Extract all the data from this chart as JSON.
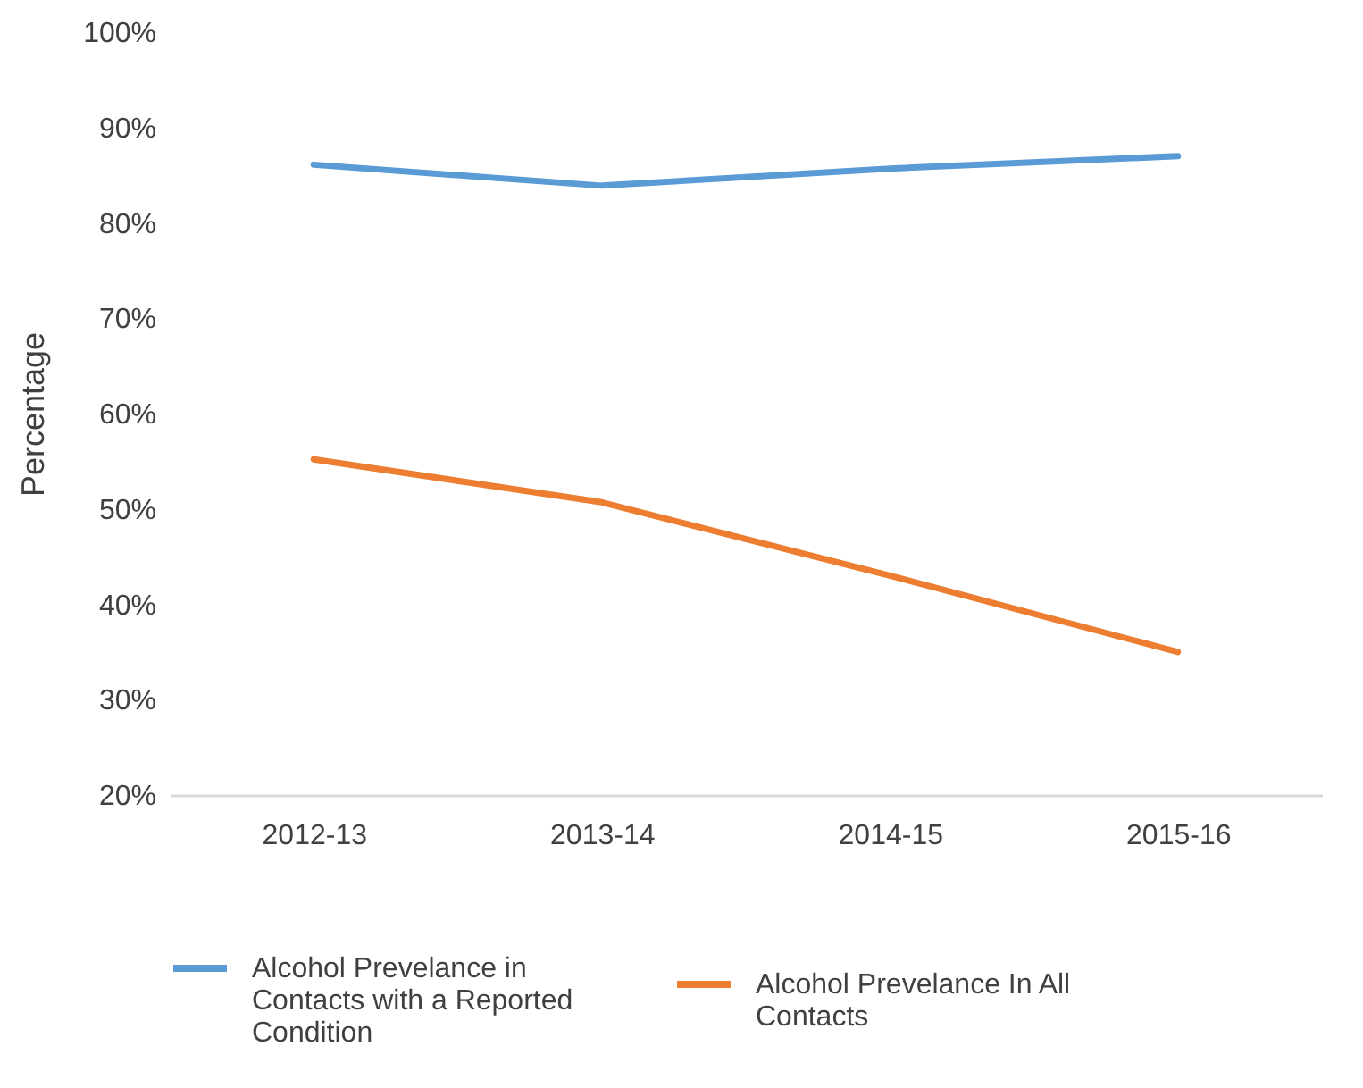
{
  "chart_data": {
    "type": "line",
    "ylabel": "Percentage",
    "categories": [
      "2012-13",
      "2013-14",
      "2014-15",
      "2015-16"
    ],
    "series": [
      {
        "name": "Alcohol Prevelance in Contacts with a Reported Condition",
        "color": "#5b9bd5",
        "values": [
          86.1,
          83.9,
          85.7,
          87.0
        ]
      },
      {
        "name": "Alcohol Prevelance In All Contacts",
        "color": "#ed7d31",
        "values": [
          55.2,
          50.7,
          43.0,
          35.0
        ]
      }
    ],
    "ylim": [
      20,
      100
    ],
    "yticks": [
      {
        "value": 20,
        "label": "20%"
      },
      {
        "value": 30,
        "label": "30%"
      },
      {
        "value": 40,
        "label": "40%"
      },
      {
        "value": 50,
        "label": "50%"
      },
      {
        "value": 60,
        "label": "60%"
      },
      {
        "value": 70,
        "label": "70%"
      },
      {
        "value": 80,
        "label": "80%"
      },
      {
        "value": 90,
        "label": "90%"
      },
      {
        "value": 100,
        "label": "100%"
      }
    ],
    "legend": "bottom",
    "line_style": "solid"
  }
}
